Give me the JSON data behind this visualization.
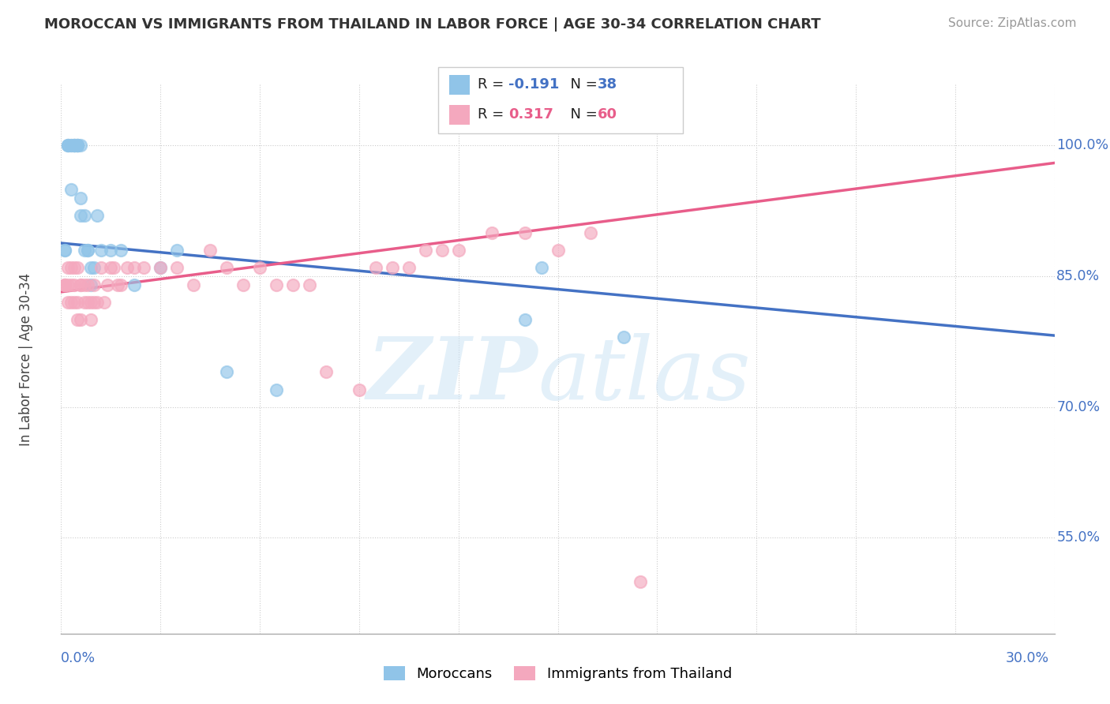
{
  "title": "MOROCCAN VS IMMIGRANTS FROM THAILAND IN LABOR FORCE | AGE 30-34 CORRELATION CHART",
  "source": "Source: ZipAtlas.com",
  "ylabel": "In Labor Force | Age 30-34",
  "legend_moroccan": "Moroccans",
  "legend_thai": "Immigrants from Thailand",
  "R_moroccan": -0.191,
  "N_moroccan": 38,
  "R_thai": 0.317,
  "N_thai": 60,
  "color_moroccan": "#90c4e8",
  "color_thai": "#f4a8be",
  "color_line_moroccan": "#4472c4",
  "color_line_thai": "#e85d8a",
  "color_yaxis": "#4472c4",
  "moroccan_x": [
    0.001,
    0.001,
    0.002,
    0.002,
    0.002,
    0.003,
    0.003,
    0.003,
    0.004,
    0.004,
    0.004,
    0.004,
    0.005,
    0.005,
    0.005,
    0.005,
    0.006,
    0.006,
    0.006,
    0.007,
    0.007,
    0.008,
    0.008,
    0.009,
    0.009,
    0.01,
    0.011,
    0.012,
    0.015,
    0.018,
    0.022,
    0.03,
    0.035,
    0.05,
    0.065,
    0.14,
    0.145,
    0.17
  ],
  "moroccan_y": [
    0.88,
    0.88,
    1.0,
    1.0,
    1.0,
    1.0,
    1.0,
    0.95,
    1.0,
    1.0,
    1.0,
    1.0,
    1.0,
    1.0,
    1.0,
    1.0,
    0.92,
    0.94,
    1.0,
    0.88,
    0.92,
    0.88,
    0.88,
    0.86,
    0.84,
    0.86,
    0.92,
    0.88,
    0.88,
    0.88,
    0.84,
    0.86,
    0.88,
    0.74,
    0.72,
    0.8,
    0.86,
    0.78
  ],
  "thai_x": [
    0.001,
    0.001,
    0.001,
    0.002,
    0.002,
    0.002,
    0.003,
    0.003,
    0.003,
    0.004,
    0.004,
    0.004,
    0.005,
    0.005,
    0.005,
    0.006,
    0.006,
    0.006,
    0.007,
    0.007,
    0.008,
    0.008,
    0.009,
    0.009,
    0.01,
    0.01,
    0.011,
    0.012,
    0.013,
    0.014,
    0.015,
    0.016,
    0.017,
    0.018,
    0.02,
    0.022,
    0.025,
    0.03,
    0.035,
    0.04,
    0.045,
    0.05,
    0.055,
    0.06,
    0.065,
    0.07,
    0.075,
    0.08,
    0.09,
    0.095,
    0.1,
    0.105,
    0.11,
    0.115,
    0.12,
    0.13,
    0.14,
    0.15,
    0.16,
    0.175
  ],
  "thai_y": [
    0.84,
    0.84,
    0.84,
    0.86,
    0.84,
    0.82,
    0.86,
    0.84,
    0.82,
    0.86,
    0.84,
    0.82,
    0.86,
    0.82,
    0.8,
    0.84,
    0.84,
    0.8,
    0.84,
    0.82,
    0.84,
    0.82,
    0.82,
    0.8,
    0.84,
    0.82,
    0.82,
    0.86,
    0.82,
    0.84,
    0.86,
    0.86,
    0.84,
    0.84,
    0.86,
    0.86,
    0.86,
    0.86,
    0.86,
    0.84,
    0.88,
    0.86,
    0.84,
    0.86,
    0.84,
    0.84,
    0.84,
    0.74,
    0.72,
    0.86,
    0.86,
    0.86,
    0.88,
    0.88,
    0.88,
    0.9,
    0.9,
    0.88,
    0.9,
    0.5
  ],
  "trend_m_x0": 0.0,
  "trend_m_x1": 0.3,
  "trend_m_y0": 0.888,
  "trend_m_y1": 0.782,
  "trend_t_x0": 0.0,
  "trend_t_x1": 0.3,
  "trend_t_y0": 0.832,
  "trend_t_y1": 0.98,
  "xmin": 0.0,
  "xmax": 0.3,
  "ymin": 0.44,
  "ymax": 1.07
}
